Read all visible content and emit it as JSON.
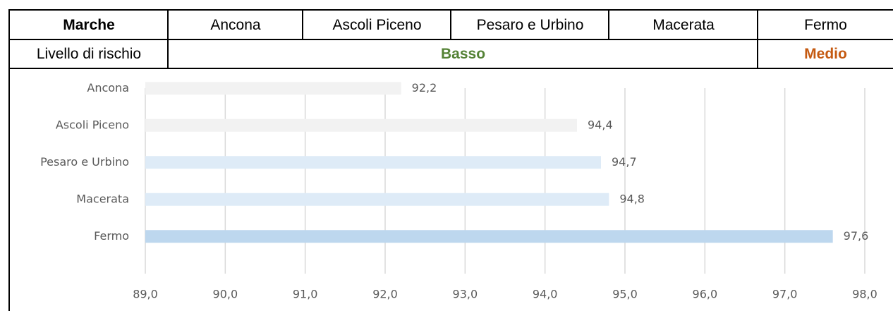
{
  "table": {
    "header": [
      "Marche",
      "Ancona",
      "Ascoli Piceno",
      "Pesaro e Urbino",
      "Macerata",
      "Fermo"
    ],
    "risk": [
      "Livello di rischio",
      "Basso",
      "Medio"
    ]
  },
  "chart_data": {
    "type": "bar",
    "orientation": "horizontal",
    "categories": [
      "Ancona",
      "Ascoli Piceno",
      "Pesaro e Urbino",
      "Macerata",
      "Fermo"
    ],
    "values": [
      92.2,
      94.4,
      94.7,
      94.8,
      97.6
    ],
    "value_labels": [
      "92,2",
      "94,4",
      "94,7",
      "94,8",
      "97,6"
    ],
    "colors": [
      "#f2f2f2",
      "#f2f2f2",
      "#deebf7",
      "#deebf7",
      "#bdd7ee"
    ],
    "xlim": [
      89,
      98
    ],
    "xticks": [
      {
        "value": 89,
        "label": "89,0"
      },
      {
        "value": 90,
        "label": "90,0"
      },
      {
        "value": 91,
        "label": "91,0"
      },
      {
        "value": 92,
        "label": "92,0"
      },
      {
        "value": 93,
        "label": "93,0"
      },
      {
        "value": 94,
        "label": "94,0"
      },
      {
        "value": 95,
        "label": "95,0"
      },
      {
        "value": 96,
        "label": "96,0"
      },
      {
        "value": 97,
        "label": "97,0"
      },
      {
        "value": 98,
        "label": "98,0"
      }
    ],
    "grid": true
  }
}
